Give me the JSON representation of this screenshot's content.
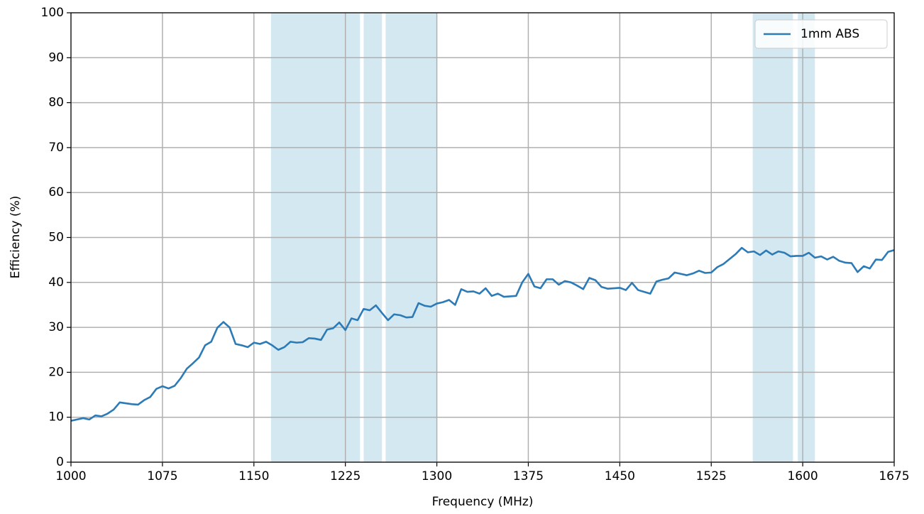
{
  "chart_data": {
    "type": "line",
    "xlabel": "Frequency (MHz)",
    "ylabel": "Efficiency (%)",
    "x": [
      1000,
      1005,
      1010,
      1015,
      1020,
      1025,
      1030,
      1035,
      1040,
      1045,
      1050,
      1055,
      1060,
      1065,
      1070,
      1075,
      1080,
      1085,
      1090,
      1095,
      1100,
      1105,
      1110,
      1115,
      1120,
      1125,
      1130,
      1135,
      1140,
      1145,
      1150,
      1155,
      1160,
      1165,
      1170,
      1175,
      1180,
      1185,
      1190,
      1195,
      1200,
      1205,
      1210,
      1215,
      1220,
      1225,
      1230,
      1235,
      1240,
      1245,
      1250,
      1255,
      1260,
      1265,
      1270,
      1275,
      1280,
      1285,
      1290,
      1295,
      1300,
      1305,
      1310,
      1315,
      1320,
      1325,
      1330,
      1335,
      1340,
      1345,
      1350,
      1355,
      1360,
      1365,
      1370,
      1375,
      1380,
      1385,
      1390,
      1395,
      1400,
      1405,
      1410,
      1415,
      1420,
      1425,
      1430,
      1435,
      1440,
      1445,
      1450,
      1455,
      1460,
      1465,
      1470,
      1475,
      1480,
      1485,
      1490,
      1495,
      1500,
      1505,
      1510,
      1515,
      1520,
      1525,
      1530,
      1535,
      1540,
      1545,
      1550,
      1555,
      1560,
      1565,
      1570,
      1575,
      1580,
      1585,
      1590,
      1595,
      1600,
      1605,
      1610,
      1615,
      1620,
      1625,
      1630,
      1635,
      1640,
      1645,
      1650,
      1655,
      1660,
      1665,
      1670,
      1675
    ],
    "series": [
      {
        "name": "1mm ABS",
        "color": "#2c7bb6",
        "values": [
          9.2,
          9.5,
          9.8,
          9.5,
          10.4,
          10.2,
          10.8,
          11.7,
          13.3,
          13.1,
          12.9,
          12.8,
          13.8,
          14.5,
          16.3,
          16.9,
          16.4,
          17.0,
          18.7,
          20.8,
          22.0,
          23.3,
          26.0,
          26.8,
          29.9,
          31.2,
          30.0,
          26.3,
          26.0,
          25.6,
          26.6,
          26.3,
          26.8,
          26.0,
          25.0,
          25.6,
          26.8,
          26.6,
          26.7,
          27.6,
          27.5,
          27.2,
          29.5,
          29.8,
          31.1,
          29.4,
          32.0,
          31.6,
          34.1,
          33.8,
          34.9,
          33.2,
          31.6,
          32.9,
          32.7,
          32.2,
          32.3,
          35.4,
          34.8,
          34.6,
          35.3,
          35.6,
          36.1,
          35.0,
          38.5,
          37.9,
          38.0,
          37.5,
          38.7,
          37.0,
          37.5,
          36.8,
          36.9,
          37.0,
          40.0,
          41.9,
          39.1,
          38.7,
          40.7,
          40.7,
          39.5,
          40.3,
          40.0,
          39.3,
          38.5,
          41.0,
          40.5,
          39.0,
          38.6,
          38.7,
          38.8,
          38.3,
          39.9,
          38.3,
          37.9,
          37.5,
          40.2,
          40.6,
          40.9,
          42.2,
          41.9,
          41.6,
          42.0,
          42.6,
          42.1,
          42.2,
          43.4,
          44.1,
          45.2,
          46.3,
          47.7,
          46.7,
          46.9,
          46.1,
          47.1,
          46.2,
          46.9,
          46.6,
          45.8,
          45.9,
          45.9,
          46.6,
          45.5,
          45.8,
          45.1,
          45.7,
          44.8,
          44.4,
          44.3,
          42.3,
          43.6,
          43.1,
          45.1,
          45.0,
          46.8,
          47.2
        ]
      }
    ],
    "spans": [
      [
        1164,
        1237
      ],
      [
        1240,
        1255
      ],
      [
        1258,
        1300
      ],
      [
        1559,
        1592
      ],
      [
        1596,
        1610
      ]
    ],
    "span_color": "#d4e8f1",
    "xlim": [
      1000,
      1675
    ],
    "xticks": [
      1000,
      1075,
      1150,
      1225,
      1300,
      1375,
      1450,
      1525,
      1600,
      1675
    ],
    "ylim": [
      0,
      100
    ],
    "yticks": [
      0,
      10,
      20,
      30,
      40,
      50,
      60,
      70,
      80,
      90,
      100
    ],
    "grid": true,
    "legend": "upper right"
  }
}
